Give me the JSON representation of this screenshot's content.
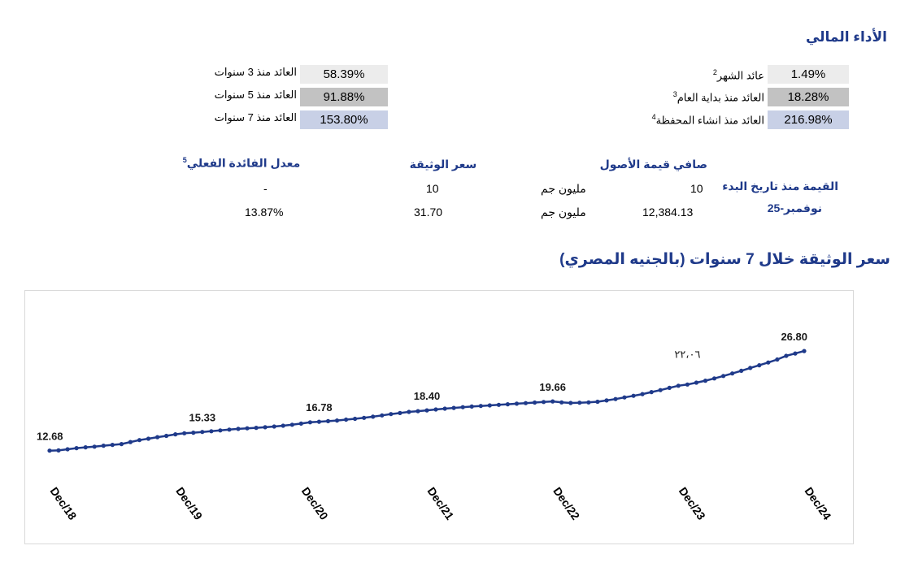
{
  "header": {
    "title": "الأداء المالي"
  },
  "returns": {
    "right": [
      {
        "label": "عائد الشهر",
        "sup": "2",
        "value": "1.49%",
        "shade": "light"
      },
      {
        "label": "العائد منذ بداية العام",
        "sup": "3",
        "value": "18.28%",
        "shade": "dark"
      },
      {
        "label": "العائد منذ انشاء المحفظة",
        "sup": "4",
        "value": "216.98%",
        "shade": "blue"
      }
    ],
    "left": [
      {
        "label": "العائد منذ 3 سنوات",
        "value": "58.39%",
        "shade": "light"
      },
      {
        "label": "العائد منذ 5 سنوات",
        "value": "91.88%",
        "shade": "dark"
      },
      {
        "label": "العائد منذ 7 سنوات",
        "value": "153.80%",
        "shade": "blue"
      }
    ]
  },
  "valuation": {
    "row_header": "القيمة منذ تاريخ البدء",
    "row_date": "نوفمبر-25",
    "nav_header": "صافي قيمة الأصول",
    "unit_header": "سعر الوثيقة",
    "yield_header": "معدل الفائدة الفعلي",
    "yield_sup": "5",
    "currency_label": "مليون جم",
    "row1": {
      "nav": "10",
      "unit": "10",
      "yield": "-"
    },
    "row2": {
      "nav": "12,384.13",
      "unit": "31.70",
      "yield": "13.87%"
    }
  },
  "chart_title": "سعر الوثيقة خلال 7 سنوات (بالجنيه المصري)",
  "chart_data": {
    "type": "line",
    "xlabel": "",
    "ylabel": "",
    "grid": false,
    "ylim": [
      10,
      29
    ],
    "x_ticks": [
      "Dec/18",
      "Dec/19",
      "Dec/20",
      "Dec/21",
      "Dec/22",
      "Dec/23",
      "Dec/24"
    ],
    "series": [
      {
        "color": "#1f3a8a",
        "values": [
          12.68,
          12.72,
          12.88,
          13.04,
          13.16,
          13.25,
          13.38,
          13.5,
          13.62,
          13.9,
          14.18,
          14.38,
          14.6,
          14.78,
          15.0,
          15.15,
          15.23,
          15.33,
          15.44,
          15.55,
          15.67,
          15.77,
          15.85,
          15.92,
          16.0,
          16.1,
          16.22,
          16.36,
          16.52,
          16.7,
          16.78,
          16.86,
          16.96,
          17.08,
          17.2,
          17.34,
          17.5,
          17.68,
          17.86,
          18.02,
          18.18,
          18.28,
          18.4,
          18.52,
          18.64,
          18.74,
          18.84,
          18.94,
          19.02,
          19.1,
          19.18,
          19.26,
          19.34,
          19.42,
          19.5,
          19.58,
          19.66,
          19.52,
          19.44,
          19.48,
          19.52,
          19.62,
          19.8,
          20.0,
          20.22,
          20.46,
          20.7,
          20.98,
          21.26,
          21.58,
          21.88,
          22.06,
          22.32,
          22.6,
          22.92,
          23.26,
          23.62,
          24.0,
          24.4,
          24.78,
          25.18,
          25.6,
          26.12,
          26.46,
          26.8
        ]
      }
    ],
    "data_labels": [
      {
        "index": 0,
        "text": "12.68"
      },
      {
        "index": 17,
        "text": "15.33"
      },
      {
        "index": 30,
        "text": "16.78"
      },
      {
        "index": 42,
        "text": "18.40"
      },
      {
        "index": 56,
        "text": "19.66"
      },
      {
        "index": 71,
        "text": "٢٢،٠٦"
      },
      {
        "index": 84,
        "text": "26.80"
      }
    ]
  }
}
